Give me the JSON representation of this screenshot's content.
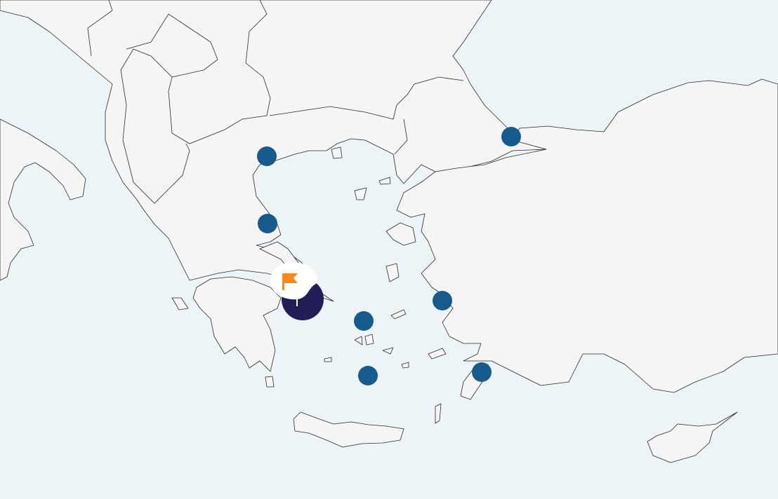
{
  "map": {
    "colors": {
      "sea": "#edf4f8",
      "land": "#f5f5f5",
      "border": "#2a2a2a",
      "marker": "#175a8c",
      "selected_marker": "#221d57",
      "flag": "#f78a16"
    },
    "markers": [
      {
        "id": "marker-1",
        "icon": "circle"
      },
      {
        "id": "marker-2",
        "icon": "circle"
      },
      {
        "id": "marker-3",
        "icon": "circle"
      },
      {
        "id": "marker-4",
        "icon": "circle"
      },
      {
        "id": "marker-5",
        "icon": "circle"
      },
      {
        "id": "marker-6",
        "icon": "circle"
      },
      {
        "id": "marker-7",
        "icon": "circle"
      }
    ],
    "selected_marker": {
      "icon": "flag-icon"
    }
  }
}
